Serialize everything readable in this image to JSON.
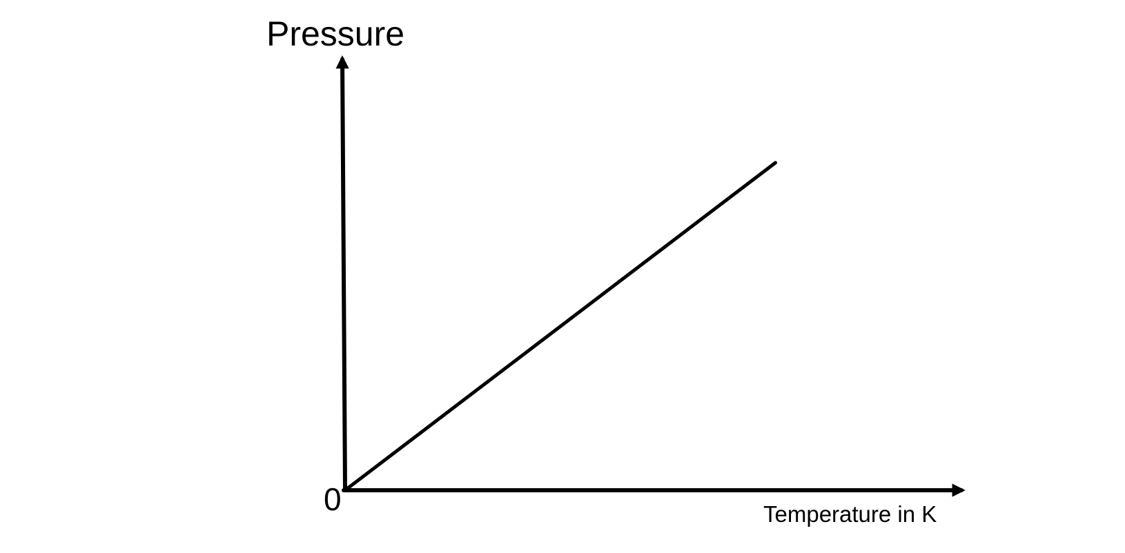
{
  "chart_data": {
    "type": "line",
    "title": "",
    "xlabel": "Temperature in K",
    "ylabel": "Pressure",
    "origin_label": "0",
    "xlim": [
      0,
      1
    ],
    "ylim": [
      0,
      1
    ],
    "grid": false,
    "legend": "none",
    "series": [
      {
        "x": [
          0,
          0.72
        ],
        "y": [
          0,
          0.76
        ]
      }
    ]
  },
  "colors": {
    "line": "#000000",
    "axis": "#000000",
    "background": "#ffffff"
  }
}
